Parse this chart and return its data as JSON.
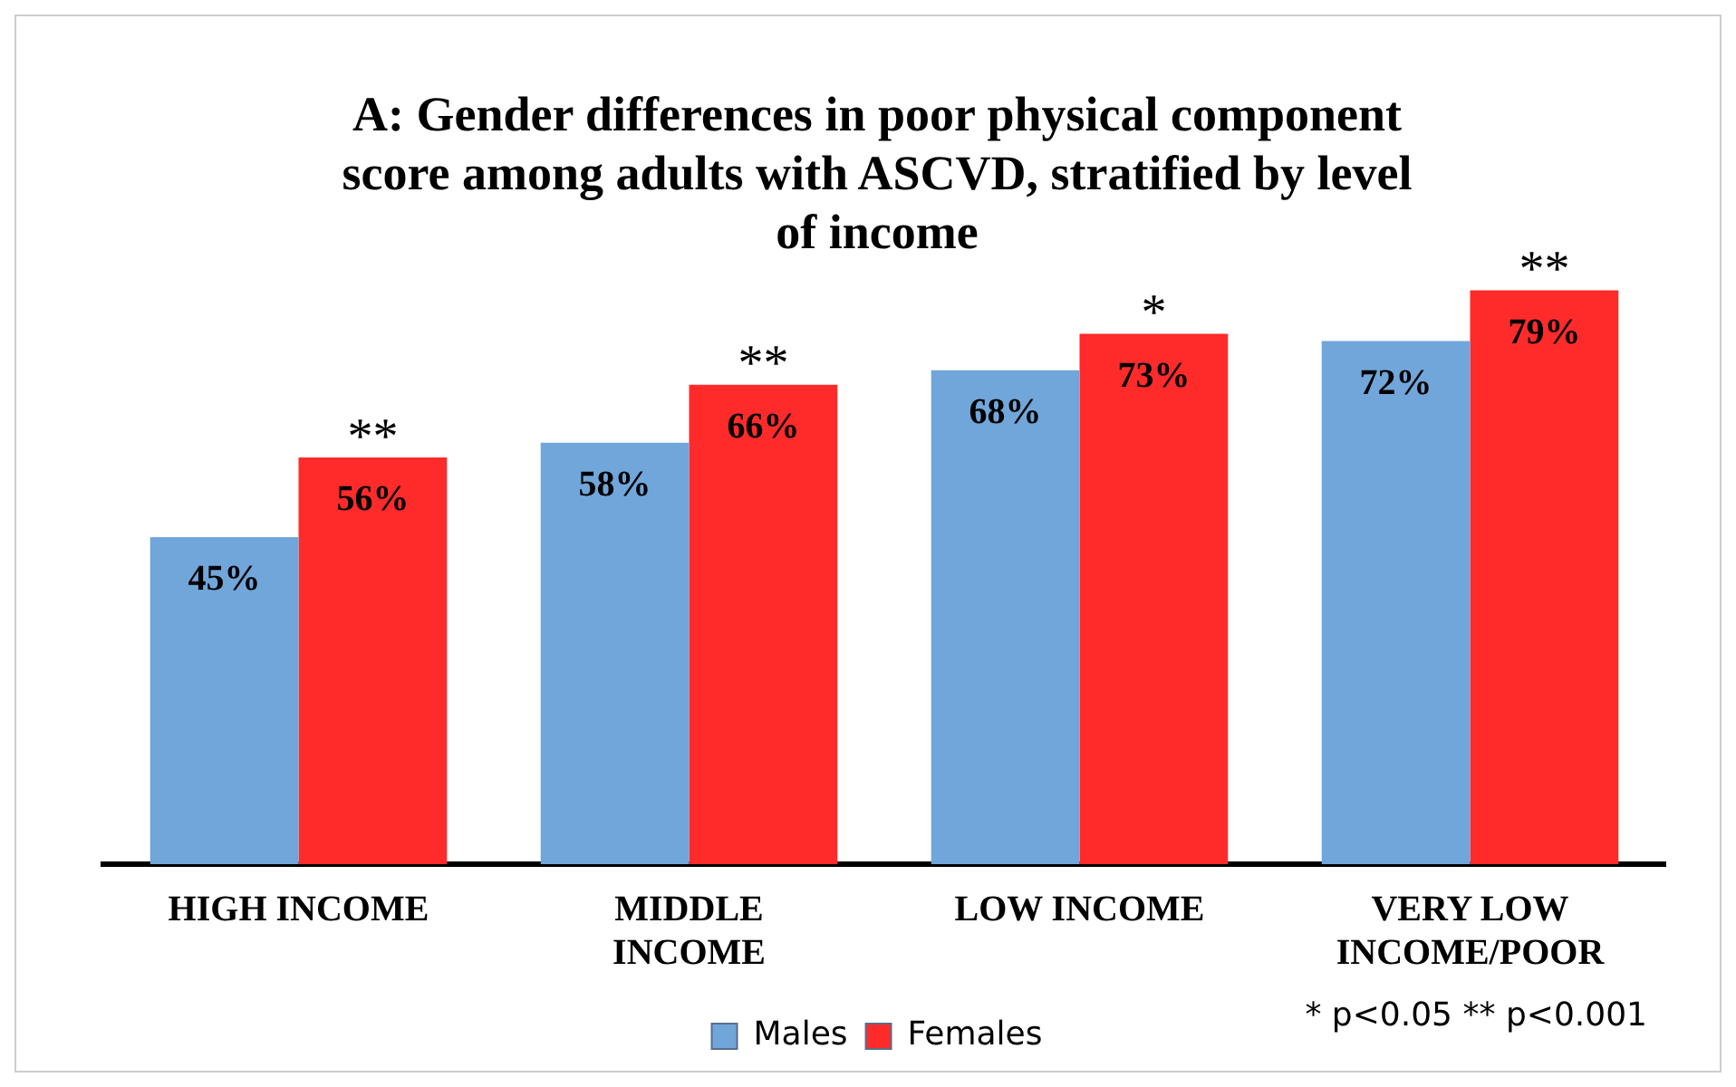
{
  "chart_data": {
    "type": "bar",
    "title": "A: Gender differences in poor physical component score among adults with ASCVD, stratified by level of income",
    "categories": [
      "HIGH INCOME",
      "MIDDLE INCOME",
      "LOW INCOME",
      "VERY LOW INCOME/POOR"
    ],
    "series": [
      {
        "name": "Males",
        "color": "#70a6da",
        "values": [
          45,
          58,
          68,
          72
        ],
        "value_labels": [
          "45%",
          "58%",
          "68%",
          "72%"
        ]
      },
      {
        "name": "Females",
        "color": "#ff2b2b",
        "values": [
          56,
          66,
          73,
          79
        ],
        "value_labels": [
          "56%",
          "66%",
          "73%",
          "79%"
        ]
      }
    ],
    "grid": false,
    "legend": "bottom",
    "tick_labels": "x",
    "annotations": [
      {
        "text": "**",
        "x": "HIGH INCOME",
        "y": 56
      },
      {
        "text": "**",
        "x": "MIDDLE INCOME",
        "y": 66
      },
      {
        "text": "*",
        "x": "LOW INCOME",
        "y": 73
      },
      {
        "text": "**",
        "x": "VERY LOW INCOME/POOR",
        "y": 79
      },
      "* p<0.05 ** p<0.001"
    ]
  }
}
